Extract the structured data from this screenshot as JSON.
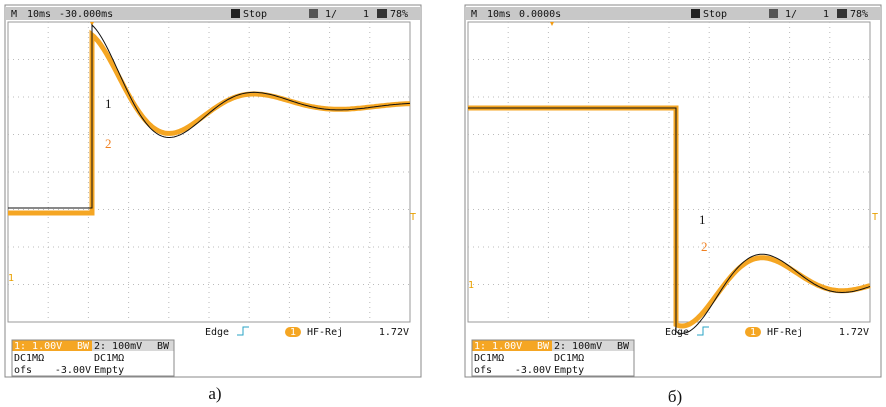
{
  "panels": [
    {
      "top": {
        "mode": "M",
        "timebase": "10ms",
        "position": "-30.000ms",
        "state": "Stop",
        "count": "1/",
        "count_total": "1",
        "battery": "78%"
      },
      "markers": {
        "trace1": "1",
        "trace2": "2",
        "ch_left": "1",
        "ch_right": "T"
      },
      "trigger": {
        "type": "Edge",
        "channel": "1",
        "filter": "HF-Rej",
        "level": "1.72V"
      },
      "ch1": {
        "scale": "1: 1.00V",
        "bw": "BW",
        "coupling": "DC1MΩ",
        "ofs_label": "ofs",
        "ofs": "-3.00V"
      },
      "ch2": {
        "scale": "2: 100mV",
        "bw": "BW",
        "coupling": "DC1MΩ",
        "status": "Empty"
      },
      "caption": "а)"
    },
    {
      "top": {
        "mode": "M",
        "timebase": "10ms",
        "position": "0.0000s",
        "state": "Stop",
        "count": "1/",
        "count_total": "1",
        "battery": "78%"
      },
      "markers": {
        "trace1": "1",
        "trace2": "2",
        "ch_left": "1",
        "ch_right": "T"
      },
      "trigger": {
        "type": "Edge",
        "channel": "1",
        "filter": "HF-Rej",
        "level": "1.72V"
      },
      "ch1": {
        "scale": "1: 1.00V",
        "bw": "BW",
        "coupling": "DC1MΩ",
        "ofs_label": "ofs",
        "ofs": "-3.00V"
      },
      "ch2": {
        "scale": "2: 100mV",
        "bw": "BW",
        "coupling": "DC1MΩ",
        "status": "Empty"
      },
      "caption": "б)"
    }
  ]
}
